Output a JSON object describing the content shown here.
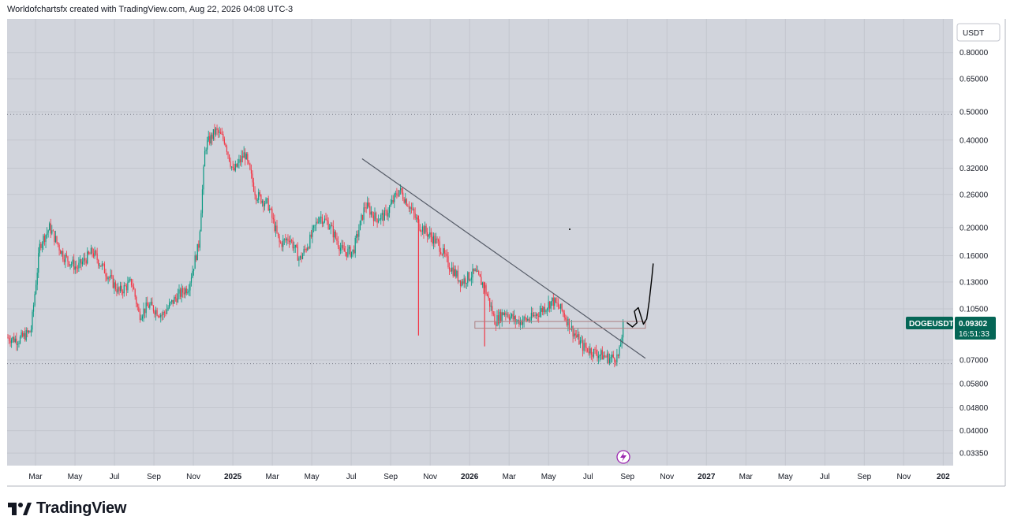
{
  "header": {
    "text": "Worldofchartsfx created with TradingView.com, Aug 22, 2026 04:08 UTC-3"
  },
  "brand": {
    "name": "TradingView",
    "icon": "tradingview-logo-icon"
  },
  "colors": {
    "background": "#d1d4dc",
    "grid": "#c3c6ce",
    "up": "#089981",
    "down": "#f23645",
    "trendline": "#555b67",
    "box": "#ffb3b8",
    "ticker_bg": "#056656",
    "drawing": "#000000"
  },
  "chart_data": {
    "type": "candlestick",
    "symbol": "DOGEUSDT",
    "currency": "USDT",
    "last_price": "0.09302",
    "countdown": "16:51:33",
    "y_scale": "log",
    "ylim": [
      0.03,
      1.0
    ],
    "y_ticks": [
      "0.80000",
      "0.65000",
      "0.50000",
      "0.40000",
      "0.32000",
      "0.26000",
      "0.20000",
      "0.16000",
      "0.13000",
      "0.10500",
      "0.07000",
      "0.05800",
      "0.04800",
      "0.04000",
      "0.03350"
    ],
    "x_ticks": [
      {
        "label": "Mar",
        "bold": false
      },
      {
        "label": "May",
        "bold": false
      },
      {
        "label": "Jul",
        "bold": false
      },
      {
        "label": "Sep",
        "bold": false
      },
      {
        "label": "Nov",
        "bold": false
      },
      {
        "label": "2025",
        "bold": true
      },
      {
        "label": "Mar",
        "bold": false
      },
      {
        "label": "May",
        "bold": false
      },
      {
        "label": "Jul",
        "bold": false
      },
      {
        "label": "Sep",
        "bold": false
      },
      {
        "label": "Nov",
        "bold": false
      },
      {
        "label": "2026",
        "bold": true
      },
      {
        "label": "Mar",
        "bold": false
      },
      {
        "label": "May",
        "bold": false
      },
      {
        "label": "Jul",
        "bold": false
      },
      {
        "label": "Sep",
        "bold": false
      },
      {
        "label": "Nov",
        "bold": false
      },
      {
        "label": "2027",
        "bold": true
      },
      {
        "label": "Mar",
        "bold": false
      },
      {
        "label": "May",
        "bold": false
      },
      {
        "label": "Jul",
        "bold": false
      },
      {
        "label": "Sep",
        "bold": false
      },
      {
        "label": "Nov",
        "bold": false
      },
      {
        "label": "202",
        "bold": true
      }
    ],
    "price_path": [
      [
        "2024-01-01",
        0.085
      ],
      [
        "2024-02-01",
        0.082
      ],
      [
        "2024-02-20",
        0.088
      ],
      [
        "2024-03-05",
        0.175
      ],
      [
        "2024-03-20",
        0.2
      ],
      [
        "2024-04-10",
        0.16
      ],
      [
        "2024-05-01",
        0.145
      ],
      [
        "2024-05-25",
        0.165
      ],
      [
        "2024-06-15",
        0.14
      ],
      [
        "2024-07-05",
        0.12
      ],
      [
        "2024-07-25",
        0.13
      ],
      [
        "2024-08-05",
        0.1
      ],
      [
        "2024-08-20",
        0.108
      ],
      [
        "2024-09-10",
        0.1
      ],
      [
        "2024-10-01",
        0.115
      ],
      [
        "2024-10-20",
        0.125
      ],
      [
        "2024-11-05",
        0.175
      ],
      [
        "2024-11-15",
        0.38
      ],
      [
        "2024-12-01",
        0.43
      ],
      [
        "2024-12-15",
        0.4
      ],
      [
        "2024-12-28",
        0.31
      ],
      [
        "2025-01-15",
        0.36
      ],
      [
        "2025-02-01",
        0.26
      ],
      [
        "2025-02-20",
        0.24
      ],
      [
        "2025-03-10",
        0.175
      ],
      [
        "2025-03-25",
        0.185
      ],
      [
        "2025-04-10",
        0.155
      ],
      [
        "2025-04-25",
        0.18
      ],
      [
        "2025-05-10",
        0.22
      ],
      [
        "2025-05-25",
        0.205
      ],
      [
        "2025-06-15",
        0.165
      ],
      [
        "2025-07-01",
        0.165
      ],
      [
        "2025-07-20",
        0.24
      ],
      [
        "2025-08-05",
        0.215
      ],
      [
        "2025-08-20",
        0.22
      ],
      [
        "2025-09-10",
        0.27
      ],
      [
        "2025-09-25",
        0.24
      ],
      [
        "2025-10-10",
        0.205
      ],
      [
        "2025-10-25",
        0.19
      ],
      [
        "2025-11-10",
        0.175
      ],
      [
        "2025-11-25",
        0.15
      ],
      [
        "2025-12-15",
        0.13
      ],
      [
        "2026-01-05",
        0.14
      ],
      [
        "2026-01-20",
        0.125
      ],
      [
        "2026-02-05",
        0.095
      ],
      [
        "2026-02-20",
        0.103
      ],
      [
        "2026-03-10",
        0.095
      ],
      [
        "2026-04-01",
        0.097
      ],
      [
        "2026-04-20",
        0.105
      ],
      [
        "2026-05-05",
        0.112
      ],
      [
        "2026-05-20",
        0.103
      ],
      [
        "2026-06-05",
        0.088
      ],
      [
        "2026-06-20",
        0.078
      ],
      [
        "2026-07-10",
        0.074
      ],
      [
        "2026-08-01",
        0.071
      ],
      [
        "2026-08-15",
        0.072
      ],
      [
        "2026-08-22",
        0.093
      ]
    ],
    "wicks": [
      {
        "date": "2025-10-10",
        "low": 0.085,
        "high": 0.22
      },
      {
        "date": "2026-01-20",
        "low": 0.078,
        "high": 0.13
      }
    ],
    "trendline": [
      [
        "2025-07-15",
        0.345
      ],
      [
        "2026-09-25",
        0.071
      ]
    ],
    "support_box": {
      "start": "2026-01-05",
      "end": "2026-09-25",
      "low": 0.09,
      "high": 0.095
    },
    "dotted_levels": [
      0.49,
      0.068
    ],
    "drawn_path": [
      [
        "2026-08-28",
        0.094
      ],
      [
        "2026-09-05",
        0.091
      ],
      [
        "2026-09-12",
        0.094
      ],
      [
        "2026-09-08",
        0.103
      ],
      [
        "2026-09-14",
        0.106
      ],
      [
        "2026-09-22",
        0.093
      ],
      [
        "2026-09-27",
        0.097
      ],
      [
        "2026-10-01",
        0.112
      ],
      [
        "2026-10-05",
        0.135
      ],
      [
        "2026-10-07",
        0.15
      ]
    ]
  }
}
